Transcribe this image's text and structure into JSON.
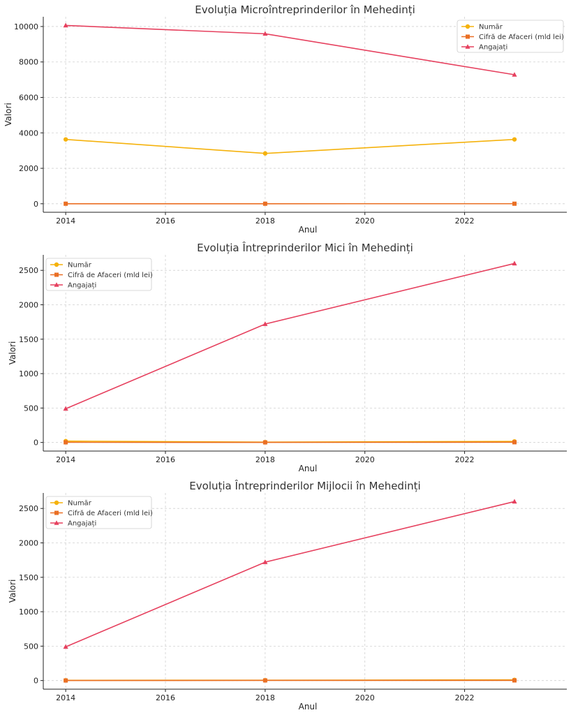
{
  "colors": {
    "numar": "#f5b20c",
    "cifra": "#ea6f24",
    "angajati": "#e6405e"
  },
  "chart_data": [
    {
      "type": "line",
      "title": "Evoluția Microîntreprinderilor în Mehedinți",
      "xlabel": "Anul",
      "ylabel": "Valori",
      "xlim": [
        2013.55,
        2024.05
      ],
      "ylim": [
        -480,
        10550
      ],
      "x": [
        2014,
        2018,
        2023
      ],
      "xticks": [
        2014,
        2016,
        2018,
        2020,
        2022
      ],
      "yticks": [
        0,
        2000,
        4000,
        6000,
        8000,
        10000
      ],
      "grid": true,
      "legend_position": "top-right",
      "series": [
        {
          "name": "Număr",
          "key": "numar",
          "marker": "circle",
          "values": [
            3630,
            2840,
            3630
          ]
        },
        {
          "name": "Cifră de Afaceri (mld lei)",
          "key": "cifra",
          "marker": "square",
          "values": [
            2,
            2,
            3
          ]
        },
        {
          "name": "Angajați",
          "key": "angajati",
          "marker": "triangle",
          "values": [
            10060,
            9590,
            7280
          ]
        }
      ]
    },
    {
      "type": "line",
      "title": "Evoluția Întreprinderilor Mici în Mehedinți",
      "xlabel": "Anul",
      "ylabel": "Valori",
      "xlim": [
        2013.55,
        2024.05
      ],
      "ylim": [
        -125,
        2725
      ],
      "x": [
        2014,
        2018,
        2023
      ],
      "xticks": [
        2014,
        2016,
        2018,
        2020,
        2022
      ],
      "yticks": [
        0,
        500,
        1000,
        1500,
        2000,
        2500
      ],
      "grid": true,
      "legend_position": "top-left",
      "series": [
        {
          "name": "Număr",
          "key": "numar",
          "marker": "circle",
          "values": [
            20,
            5,
            15
          ]
        },
        {
          "name": "Cifră de Afaceri (mld lei)",
          "key": "cifra",
          "marker": "square",
          "values": [
            2,
            1,
            3
          ]
        },
        {
          "name": "Angajați",
          "key": "angajati",
          "marker": "triangle",
          "values": [
            490,
            1720,
            2600
          ]
        }
      ]
    },
    {
      "type": "line",
      "title": "Evoluția Întreprinderilor Mijlocii în Mehedinți",
      "xlabel": "Anul",
      "ylabel": "Valori",
      "xlim": [
        2013.55,
        2024.05
      ],
      "ylim": [
        -125,
        2725
      ],
      "x": [
        2014,
        2018,
        2023
      ],
      "xticks": [
        2014,
        2016,
        2018,
        2020,
        2022
      ],
      "yticks": [
        0,
        500,
        1000,
        1500,
        2000,
        2500
      ],
      "grid": true,
      "legend_position": "top-left",
      "series": [
        {
          "name": "Număr",
          "key": "numar",
          "marker": "circle",
          "values": [
            4,
            5,
            10
          ]
        },
        {
          "name": "Cifră de Afaceri (mld lei)",
          "key": "cifra",
          "marker": "square",
          "values": [
            1,
            2,
            2
          ]
        },
        {
          "name": "Angajați",
          "key": "angajati",
          "marker": "triangle",
          "values": [
            490,
            1720,
            2600
          ]
        }
      ]
    }
  ]
}
